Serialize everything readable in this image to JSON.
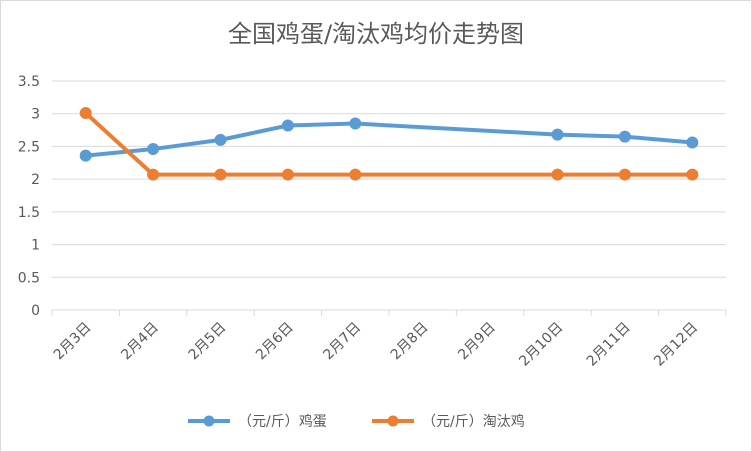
{
  "chart_data": {
    "type": "line",
    "title": "全国鸡蛋/淘汰鸡均价走势图",
    "categories": [
      "2月3日",
      "2月4日",
      "2月5日",
      "2月6日",
      "2月7日",
      "2月8日",
      "2月9日",
      "2月10日",
      "2月11日",
      "2月12日"
    ],
    "ylim": [
      0,
      3.5
    ],
    "yticks": [
      "0",
      "0.5",
      "1",
      "1.5",
      "2",
      "2.5",
      "3",
      "3.5"
    ],
    "grid": true,
    "legend_position": "bottom",
    "series": [
      {
        "name": "（元/斤）鸡蛋",
        "color": "#5b9bd5",
        "values": [
          2.36,
          2.46,
          2.6,
          2.82,
          2.85,
          null,
          null,
          2.68,
          2.65,
          2.56
        ]
      },
      {
        "name": "（元/斤）淘汰鸡",
        "color": "#ed7d31",
        "values": [
          3.01,
          2.07,
          2.07,
          2.07,
          2.07,
          null,
          null,
          2.07,
          2.07,
          2.07
        ]
      }
    ]
  }
}
